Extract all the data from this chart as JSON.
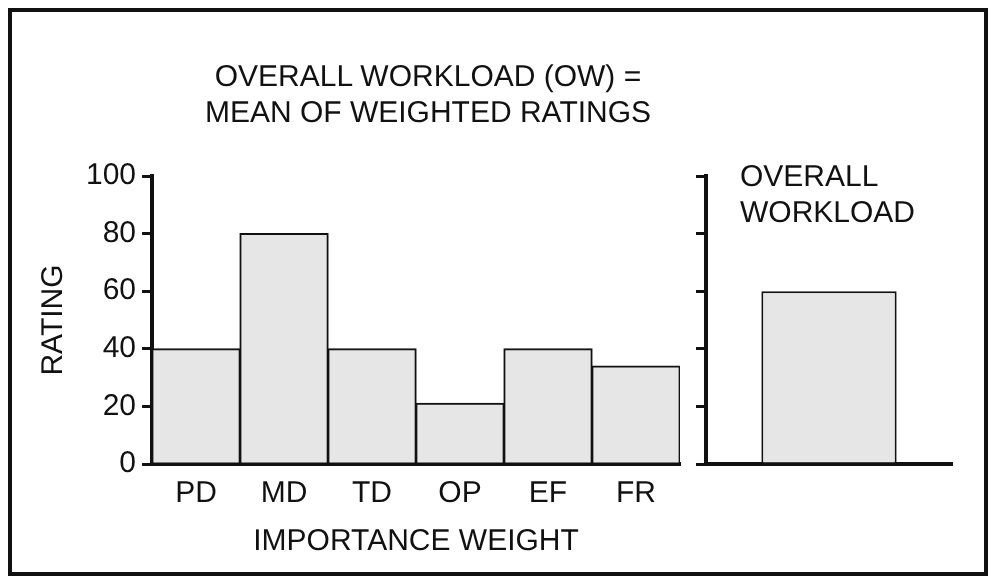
{
  "chart_data": [
    {
      "type": "bar",
      "title": "OVERALL WORKLOAD (OW) = MEAN OF WEIGHTED RATINGS",
      "xlabel": "IMPORTANCE WEIGHT",
      "ylabel": "RATING",
      "categories": [
        "PD",
        "MD",
        "TD",
        "OP",
        "EF",
        "FR"
      ],
      "values": [
        40,
        80,
        40,
        21,
        40,
        34
      ],
      "color": "#e6e6e6",
      "ylim": [
        0,
        100
      ],
      "yticks": [
        0,
        20,
        40,
        60,
        80,
        100
      ],
      "grid": false
    },
    {
      "type": "bar",
      "title": "OVERALL WORKLOAD",
      "categories": [
        null
      ],
      "values": [
        60
      ],
      "color": "#e6e6e6",
      "ylim": [
        0,
        100
      ],
      "yticks": [
        0,
        20,
        40,
        60,
        80,
        100
      ],
      "grid": false,
      "tick_labels": false
    }
  ]
}
